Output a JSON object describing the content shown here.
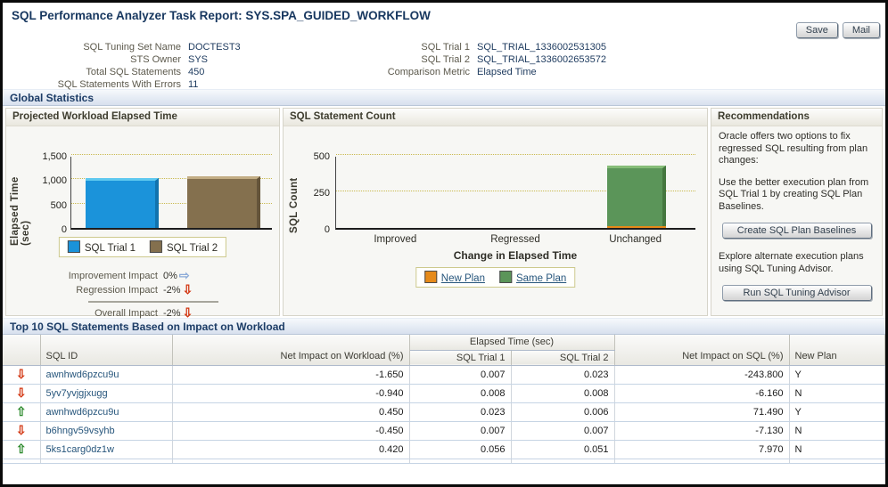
{
  "page": {
    "title": "SQL Performance Analyzer Task Report: SYS.SPA_GUIDED_WORKFLOW"
  },
  "toolbar": {
    "save_label": "Save",
    "mail_label": "Mail"
  },
  "info": {
    "left": [
      {
        "label": "SQL Tuning Set Name",
        "value": "DOCTEST3"
      },
      {
        "label": "STS Owner",
        "value": "SYS"
      },
      {
        "label": "Total SQL Statements",
        "value": "450"
      },
      {
        "label": "SQL Statements With Errors",
        "value": "11"
      }
    ],
    "right": [
      {
        "label": "SQL Trial 1",
        "value": "SQL_TRIAL_1336002531305"
      },
      {
        "label": "SQL Trial 2",
        "value": "SQL_TRIAL_1336002653572"
      },
      {
        "label": "Comparison Metric",
        "value": "Elapsed Time"
      }
    ]
  },
  "sections": {
    "global_statistics": "Global Statistics",
    "top10": "Top 10 SQL Statements Based on Impact on Workload"
  },
  "chart_data": [
    {
      "type": "bar",
      "title": "Projected Workload Elapsed Time",
      "ylabel": "Elapsed Time (sec)",
      "ylim": [
        0,
        1500
      ],
      "yticks": [
        {
          "v": 0,
          "label": "0"
        },
        {
          "v": 500,
          "label": "500"
        },
        {
          "v": 1000,
          "label": "1,000"
        },
        {
          "v": 1500,
          "label": "1,500"
        }
      ],
      "grid": "horizontal-dotted",
      "legend_position": "bottom",
      "series": [
        {
          "name": "SQL Trial 1",
          "value": 1020,
          "color": "#1b93da",
          "top_color": "#5fc9ef",
          "side_color": "#1173ae"
        },
        {
          "name": "SQL Trial 2",
          "value": 1065,
          "color": "#84704e",
          "top_color": "#c3ae85",
          "side_color": "#64543a"
        }
      ]
    },
    {
      "type": "stacked-bar",
      "title": "SQL Statement Count",
      "ylabel": "SQL Count",
      "xlabel": "Change in Elapsed Time",
      "ylim": [
        0,
        500
      ],
      "yticks": [
        {
          "v": 0,
          "label": "0"
        },
        {
          "v": 250,
          "label": "250"
        },
        {
          "v": 500,
          "label": "500"
        }
      ],
      "grid": "horizontal-dotted",
      "legend_position": "bottom",
      "categories": [
        "Improved",
        "Regressed",
        "Unchanged"
      ],
      "series": [
        {
          "name": "New Plan",
          "color": "#e68a19",
          "top_color": "#f4b14f",
          "side_color": "#b96c0e",
          "values": [
            0,
            0,
            10
          ]
        },
        {
          "name": "Same Plan",
          "color": "#5b9559",
          "top_color": "#86bd78",
          "side_color": "#45773f",
          "values": [
            0,
            0,
            420
          ]
        }
      ]
    }
  ],
  "impact": {
    "rows": [
      {
        "label": "Improvement Impact",
        "value": "0%",
        "arrow": "right"
      },
      {
        "label": "Regression Impact",
        "value": "-2%",
        "arrow": "down"
      }
    ],
    "overall": {
      "label": "Overall Impact",
      "value": "-2%",
      "arrow": "down"
    }
  },
  "recommendations": {
    "title": "Recommendations",
    "intro": "Oracle offers two options to fix regressed SQL resulting from plan changes:",
    "option1": "Use the better execution plan from SQL Trial 1 by creating SQL Plan Baselines.",
    "button1": "Create SQL Plan Baselines",
    "option2": "Explore alternate execution plans using SQL Tuning Advisor.",
    "button2": "Run SQL Tuning Advisor"
  },
  "table": {
    "group_header": "Elapsed Time (sec)",
    "columns": {
      "sql_id": "SQL ID",
      "workload_impact": "Net Impact on Workload (%)",
      "trial1": "SQL Trial 1",
      "trial2": "SQL Trial 2",
      "sql_impact": "Net Impact on SQL (%)",
      "new_plan": "New Plan"
    },
    "rows": [
      {
        "trend": "down",
        "sql_id": "awnhwd6pzcu9u",
        "workload_impact": "-1.650",
        "trial1": "0.007",
        "trial2": "0.023",
        "sql_impact": "-243.800",
        "new_plan": "Y"
      },
      {
        "trend": "down",
        "sql_id": "5yv7yvjgjxugg",
        "workload_impact": "-0.940",
        "trial1": "0.008",
        "trial2": "0.008",
        "sql_impact": "-6.160",
        "new_plan": "N"
      },
      {
        "trend": "up",
        "sql_id": "awnhwd6pzcu9u",
        "workload_impact": "0.450",
        "trial1": "0.023",
        "trial2": "0.006",
        "sql_impact": "71.490",
        "new_plan": "Y"
      },
      {
        "trend": "down",
        "sql_id": "b6hngv59vsyhb",
        "workload_impact": "-0.450",
        "trial1": "0.007",
        "trial2": "0.007",
        "sql_impact": "-7.130",
        "new_plan": "N"
      },
      {
        "trend": "up",
        "sql_id": "5ks1carg0dz1w",
        "workload_impact": "0.420",
        "trial1": "0.056",
        "trial2": "0.051",
        "sql_impact": "7.970",
        "new_plan": "N"
      }
    ]
  },
  "glyphs": {
    "up": "⇧",
    "down": "⇩",
    "right": "⇨"
  },
  "colors": {
    "title_navy": "#17375f",
    "arrow_red": "#d2340f",
    "arrow_green": "#2e8b2e",
    "arrow_blue": "#8cabd8",
    "link_blue": "#27567c",
    "grid_dotted": "#c9b94e"
  }
}
